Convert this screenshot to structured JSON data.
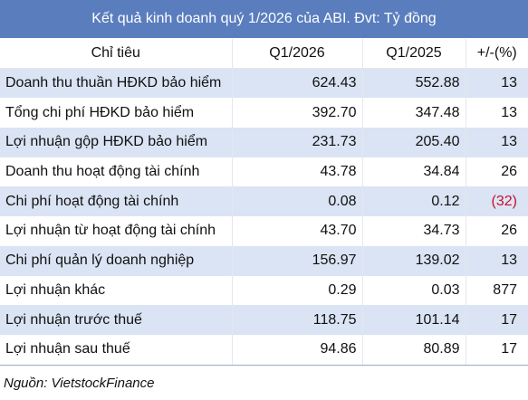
{
  "title": "Kết quả kinh doanh quý 1/2026 của ABI. Đvt: Tỷ đồng",
  "headers": {
    "indicator": "Chỉ tiêu",
    "q1_2026": "Q1/2026",
    "q1_2025": "Q1/2025",
    "change": "+/-(%)"
  },
  "rows": [
    {
      "label": "Doanh thu thuần HĐKD bảo hiểm",
      "q1_2026": "624.43",
      "q1_2025": "552.88",
      "change": "13",
      "negative": false
    },
    {
      "label": "Tổng chi phí HĐKD bảo hiểm",
      "q1_2026": "392.70",
      "q1_2025": "347.48",
      "change": "13",
      "negative": false
    },
    {
      "label": "Lợi nhuận gộp HĐKD bảo hiểm",
      "q1_2026": "231.73",
      "q1_2025": "205.40",
      "change": "13",
      "negative": false
    },
    {
      "label": "Doanh thu hoạt động tài chính",
      "q1_2026": "43.78",
      "q1_2025": "34.84",
      "change": "26",
      "negative": false
    },
    {
      "label": "Chi phí hoạt động tài chính",
      "q1_2026": "0.08",
      "q1_2025": "0.12",
      "change": "(32)",
      "negative": true
    },
    {
      "label": "Lợi nhuận từ hoạt động tài chính",
      "q1_2026": "43.70",
      "q1_2025": "34.73",
      "change": "26",
      "negative": false
    },
    {
      "label": "Chi phí quản lý doanh nghiệp",
      "q1_2026": "156.97",
      "q1_2025": "139.02",
      "change": "13",
      "negative": false
    },
    {
      "label": "Lợi nhuận khác",
      "q1_2026": "0.29",
      "q1_2025": "0.03",
      "change": "877",
      "negative": false
    },
    {
      "label": "Lợi nhuận trước thuế",
      "q1_2026": "118.75",
      "q1_2025": "101.14",
      "change": "17",
      "negative": false
    },
    {
      "label": "Lợi nhuận sau thuế",
      "q1_2026": "94.86",
      "q1_2025": "80.89",
      "change": "17",
      "negative": false
    }
  ],
  "source": "Nguồn: VietstockFinance",
  "colors": {
    "title_background": "#5a7dbe",
    "stripe": "#dbe4f4",
    "negative_text": "#c8102e"
  }
}
